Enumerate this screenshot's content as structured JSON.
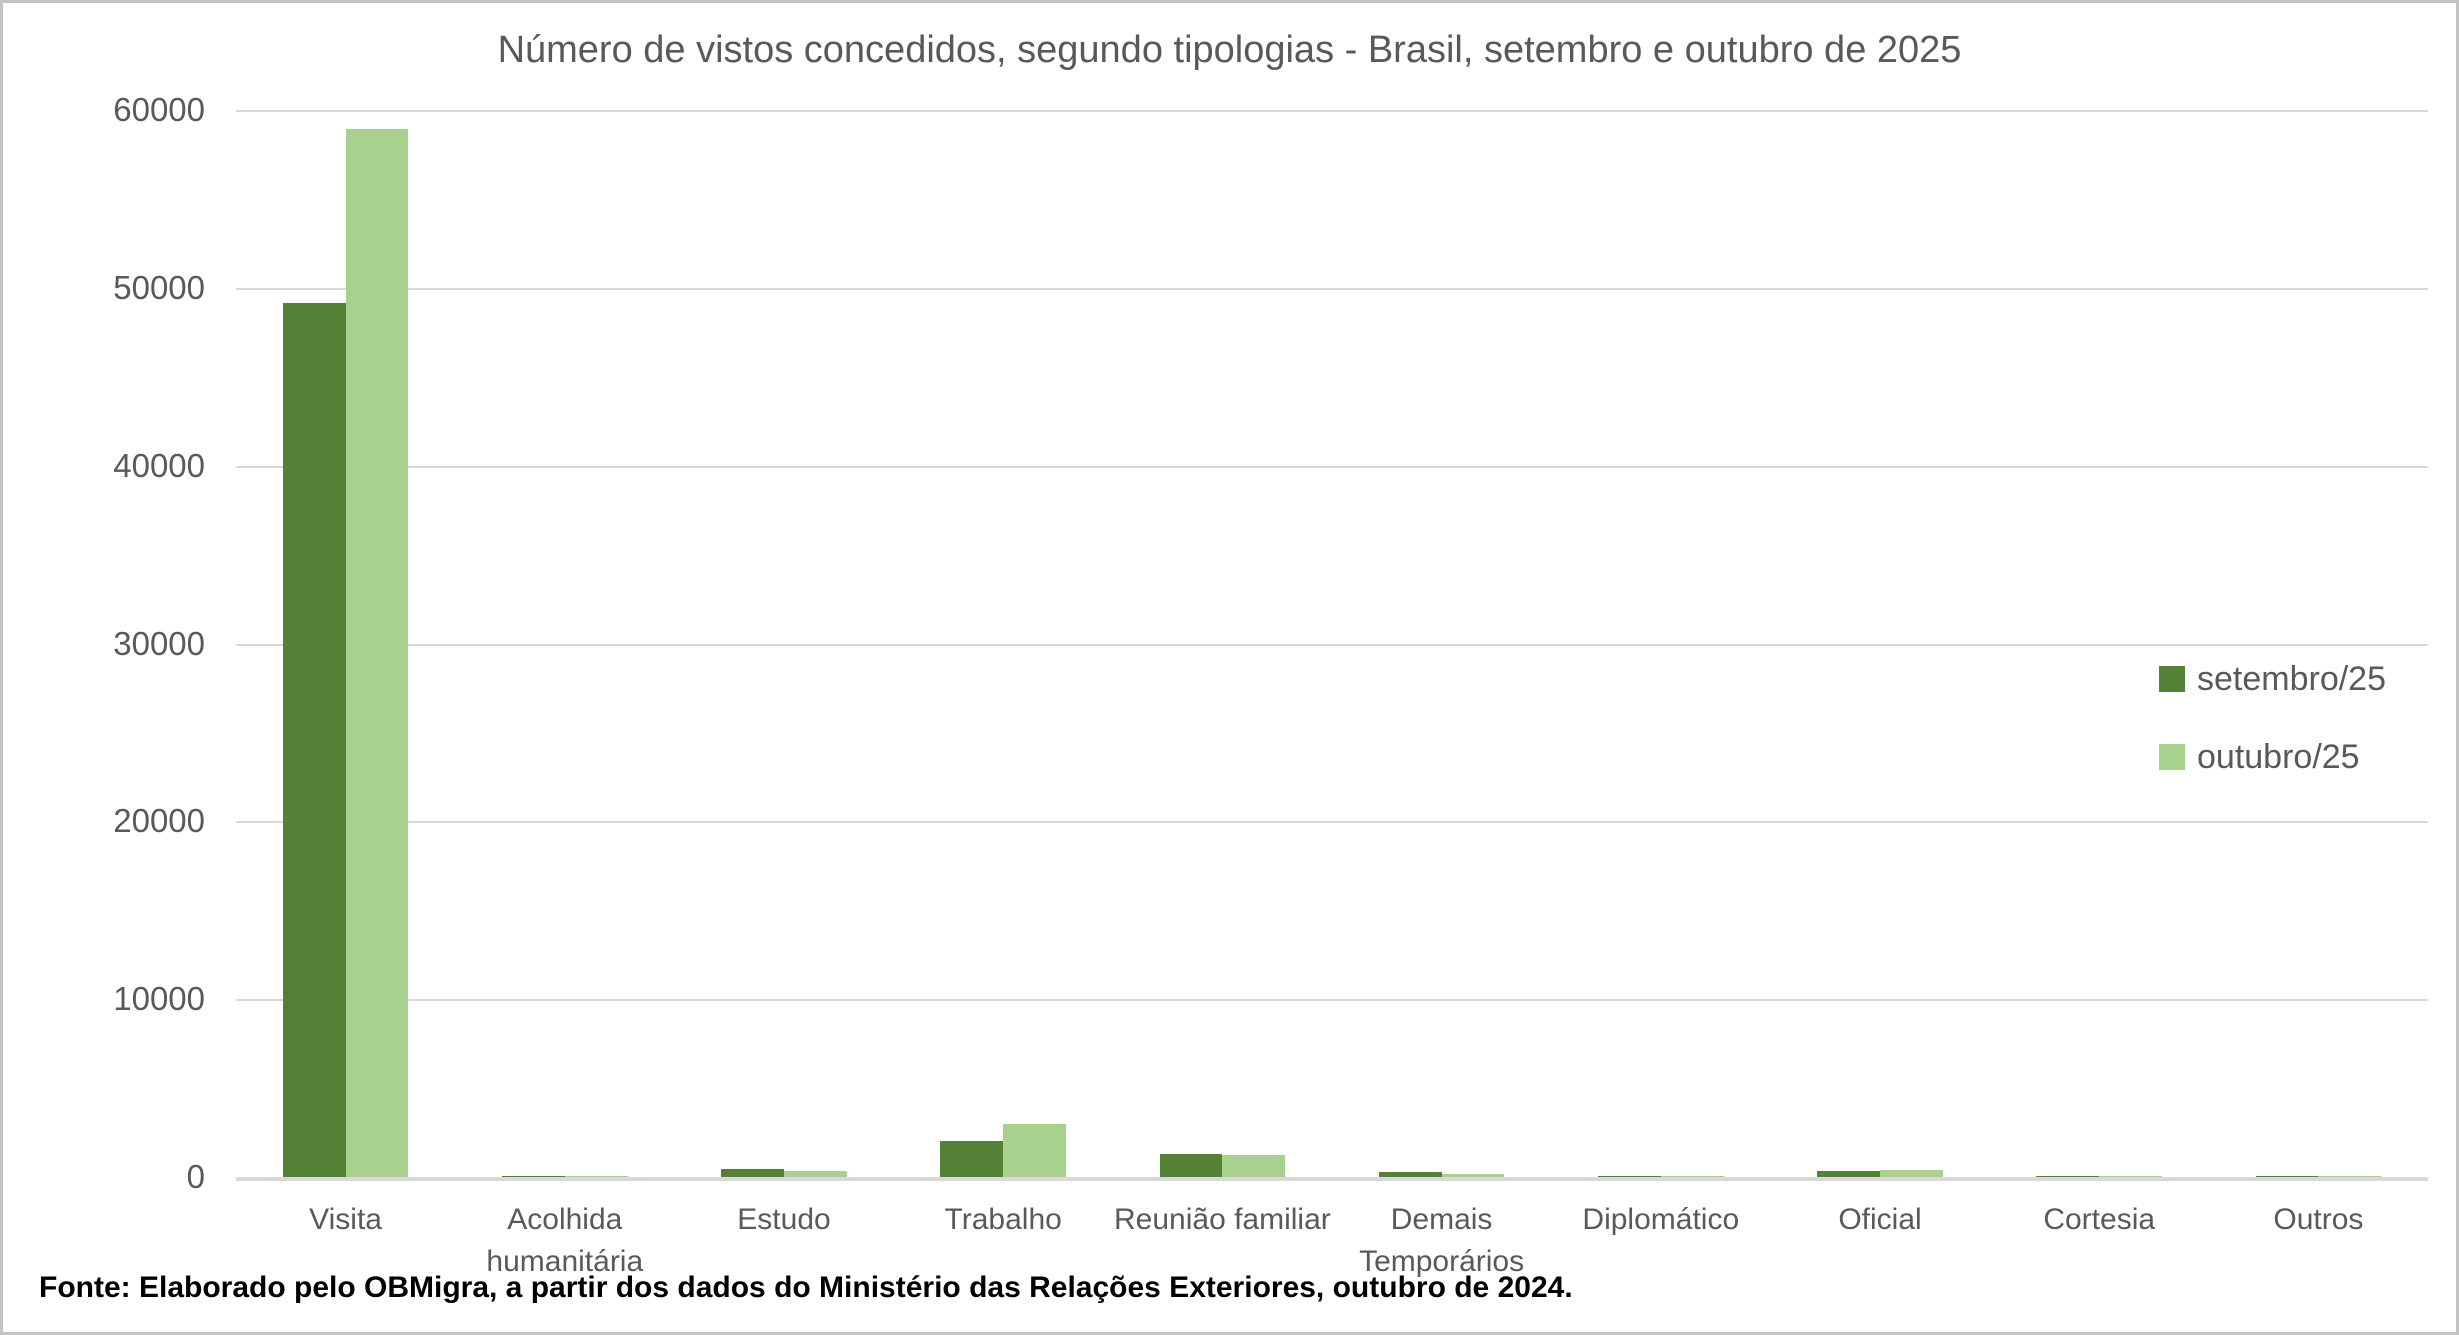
{
  "frame": {
    "background_color": "#ffffff",
    "border_color": "#c3c3c3"
  },
  "chart_data": {
    "type": "bar",
    "title": "Número de vistos concedidos, segundo tipologias - Brasil, setembro e outubro de 2025",
    "categories": [
      "Visita",
      "Acolhida humanitária",
      "Estudo",
      "Trabalho",
      "Reunião familiar",
      "Demais Temporários",
      "Diplomático",
      "Oficial",
      "Cortesia",
      "Outros"
    ],
    "series": [
      {
        "name": "setembro/25",
        "color": "#538135",
        "values": [
          49200,
          130,
          500,
          2100,
          1370,
          320,
          110,
          380,
          130,
          100
        ]
      },
      {
        "name": "outubro/25",
        "color": "#A9D18E",
        "values": [
          59000,
          80,
          410,
          3050,
          1310,
          240,
          80,
          470,
          80,
          60
        ]
      }
    ],
    "xlabel": "",
    "ylabel": "",
    "ylim": [
      0,
      60000
    ],
    "ytick_step": 10000,
    "yticks": [
      "0",
      "10000",
      "20000",
      "30000",
      "40000",
      "50000",
      "60000"
    ],
    "grid": true,
    "legend_position": "right",
    "gridline_color": "#d9d9d9",
    "axis_line_color": "#d9d9d9",
    "text_color": "#595959"
  },
  "footer": {
    "source_text": "Fonte: Elaborado pelo OBMigra, a partir dos dados do Ministério das Relações Exteriores, outubro de 2024."
  }
}
